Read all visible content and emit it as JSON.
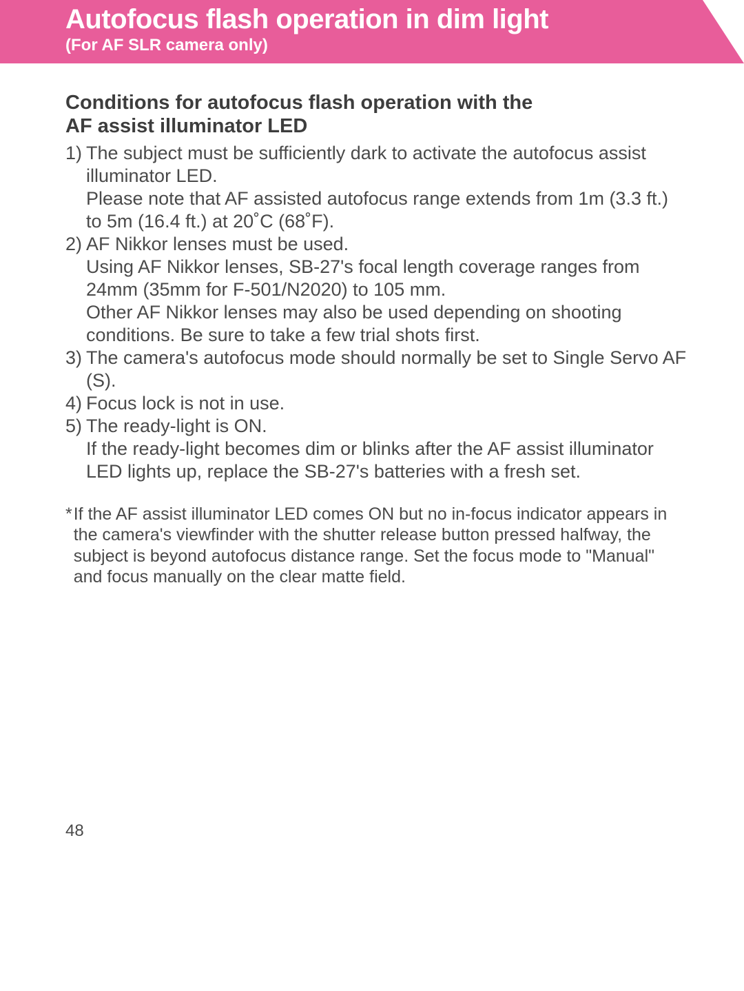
{
  "banner": {
    "title": "Autofocus flash operation in dim light",
    "subtitle": "(For AF SLR camera only)",
    "bg_color": "#e85d9a",
    "text_color": "#ffffff",
    "title_fontsize": 40,
    "subtitle_fontsize": 24
  },
  "section": {
    "heading_line1": "Conditions for autofocus flash operation with the",
    "heading_line2": "AF assist illuminator LED",
    "heading_fontsize": 29,
    "body_fontsize": 27,
    "text_color": "#4a4a4a"
  },
  "items": [
    {
      "marker": "1)",
      "line1": "The subject must be sufficiently dark to activate the autofocus assist illuminator LED.",
      "line2": "Please note that AF assisted autofocus range extends from 1m (3.3 ft.) to 5m (16.4 ft.) at 20˚C (68˚F)."
    },
    {
      "marker": "2)",
      "line1": "AF Nikkor lenses must be used.",
      "line2": "Using AF Nikkor lenses, SB-27's focal length coverage ranges from 24mm (35mm for F-501/N2020) to 105 mm.",
      "line3": "Other AF Nikkor lenses may also be used depending on shooting conditions. Be sure to take a few trial shots first."
    },
    {
      "marker": "3)",
      "line1": "The camera's autofocus mode should normally be set to Single Servo AF (S)."
    },
    {
      "marker": "4)",
      "line1": "Focus lock is not in use."
    },
    {
      "marker": "5)",
      "line1": "The ready-light is ON.",
      "line2": "If the ready-light becomes dim or blinks after the AF assist illuminator LED lights up, replace the SB-27's batteries with a fresh set."
    }
  ],
  "footnote": {
    "star": "*",
    "text": "If the AF assist illuminator LED comes ON but no in-focus indicator appears in the camera's viewfinder with the shutter release button pressed halfway, the subject is beyond autofocus distance range. Set the focus mode to \"Manual\" and focus manually on the clear matte field.",
    "fontsize": 25
  },
  "page_number": "48",
  "page_bg": "#ffffff"
}
